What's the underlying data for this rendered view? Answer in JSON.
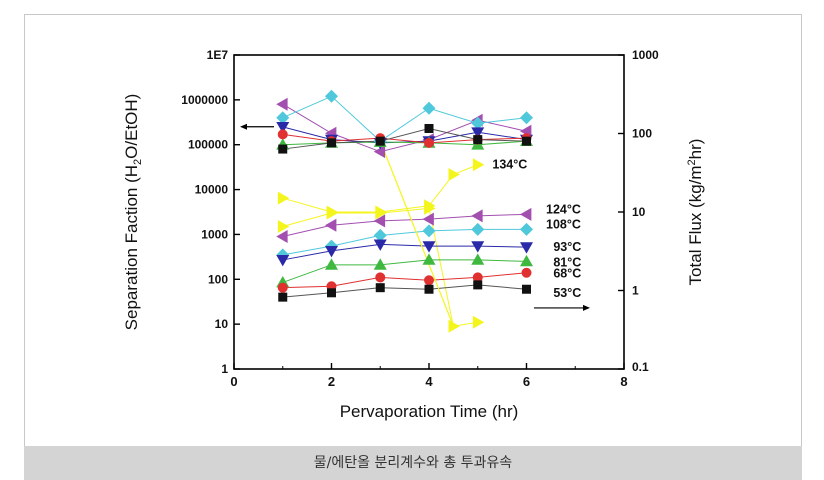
{
  "caption": "물/에탄올 분리계수와 총 투과유속",
  "chart_data": {
    "type": "scatter",
    "xlabel": "Pervaporation Time (hr)",
    "ylabel_left": "Separation Faction (H2O/EtOH)",
    "ylabel_right": "Total Flux (kg/m2hr)",
    "xlim": [
      0,
      8
    ],
    "xticks": [
      "0",
      "2",
      "4",
      "6",
      "8"
    ],
    "ylim_left": [
      1,
      10000000
    ],
    "yticks_left": [
      "1",
      "10",
      "100",
      "1000",
      "10000",
      "100000",
      "1000000",
      "1E7"
    ],
    "ylim_right": [
      0.1,
      1000
    ],
    "yticks_right": [
      "0.1",
      "1",
      "10",
      "100",
      "1000"
    ],
    "left_log": true,
    "right_log": true,
    "series": [
      {
        "name": "134°C",
        "color": "#f5f51e",
        "marker": "triangle-right",
        "flux": [
          [
            1,
            15
          ],
          [
            2,
            10
          ],
          [
            3,
            10
          ],
          [
            4,
            12
          ],
          [
            4.5,
            30
          ],
          [
            5,
            40
          ]
        ],
        "separation": [
          [
            1,
            1500
          ],
          [
            2,
            3000
          ],
          [
            3,
            3000
          ],
          [
            4,
            3800
          ],
          [
            4.5,
            9
          ],
          [
            5,
            11
          ]
        ]
      },
      {
        "name": "124°C",
        "color": "#a24fb0",
        "marker": "triangle-left",
        "flux": [
          [
            1,
            800000
          ],
          [
            2,
            180000
          ],
          [
            3,
            70000
          ],
          [
            4,
            130000
          ],
          [
            5,
            350000
          ],
          [
            6,
            200000
          ]
        ],
        "separation": [
          [
            1,
            900
          ],
          [
            2,
            1600
          ],
          [
            3,
            2000
          ],
          [
            4,
            2200
          ],
          [
            5,
            2600
          ],
          [
            6,
            2800
          ]
        ]
      },
      {
        "name": "108°C",
        "color": "#4fc8dc",
        "marker": "diamond",
        "flux": [
          [
            1,
            400000
          ],
          [
            2,
            1200000
          ],
          [
            3,
            120000
          ],
          [
            4,
            650000
          ],
          [
            5,
            300000
          ],
          [
            6,
            400000
          ]
        ],
        "separation": [
          [
            1,
            350
          ],
          [
            2,
            550
          ],
          [
            3,
            950
          ],
          [
            4,
            1200
          ],
          [
            5,
            1300
          ],
          [
            6,
            1300
          ]
        ]
      },
      {
        "name": "93°C",
        "color": "#2a2aa8",
        "marker": "triangle-down",
        "flux": [
          [
            1,
            250000
          ],
          [
            2,
            130000
          ],
          [
            3,
            110000
          ],
          [
            4,
            120000
          ],
          [
            5,
            190000
          ],
          [
            6,
            130000
          ]
        ],
        "separation": [
          [
            1,
            270
          ],
          [
            2,
            430
          ],
          [
            3,
            600
          ],
          [
            4,
            550
          ],
          [
            5,
            550
          ],
          [
            6,
            520
          ]
        ]
      },
      {
        "name": "81°C",
        "color": "#3fb83f",
        "marker": "triangle-up",
        "flux": [
          [
            1,
            100000
          ],
          [
            2,
            110000
          ],
          [
            3,
            115000
          ],
          [
            4,
            110000
          ],
          [
            5,
            100000
          ],
          [
            6,
            120000
          ]
        ],
        "separation": [
          [
            1,
            85
          ],
          [
            2,
            210
          ],
          [
            3,
            210
          ],
          [
            4,
            270
          ],
          [
            5,
            270
          ],
          [
            6,
            250
          ]
        ]
      },
      {
        "name": "68°C",
        "color": "#e03030",
        "marker": "circle",
        "flux": [
          [
            1,
            170000
          ],
          [
            2,
            120000
          ],
          [
            3,
            140000
          ],
          [
            4,
            110000
          ],
          [
            5,
            130000
          ],
          [
            6,
            140000
          ]
        ],
        "separation": [
          [
            1,
            65
          ],
          [
            2,
            70
          ],
          [
            3,
            110
          ],
          [
            4,
            95
          ],
          [
            5,
            110
          ],
          [
            6,
            140
          ]
        ]
      },
      {
        "name": "53°C",
        "color": "#111111",
        "marker": "square",
        "flux": [
          [
            1,
            80000
          ],
          [
            2,
            110000
          ],
          [
            3,
            120000
          ],
          [
            4,
            230000
          ],
          [
            5,
            130000
          ],
          [
            6,
            120000
          ]
        ],
        "separation": [
          [
            1,
            40
          ],
          [
            2,
            50
          ],
          [
            3,
            65
          ],
          [
            4,
            60
          ],
          [
            5,
            75
          ],
          [
            6,
            60
          ]
        ]
      }
    ]
  }
}
